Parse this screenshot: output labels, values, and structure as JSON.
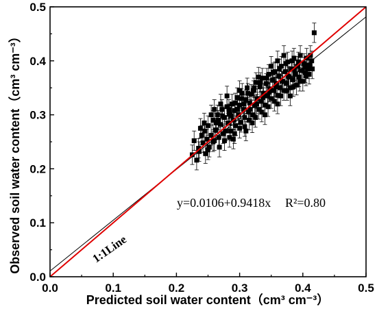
{
  "chart_data": {
    "type": "scatter",
    "xlabel": "Predicted soil water content（cm³ cm⁻³）",
    "ylabel": "Observed soil water content（cm³ cm⁻³）",
    "xlim": [
      0.0,
      0.5
    ],
    "ylim": [
      0.0,
      0.5
    ],
    "x_ticks": [
      "0.0",
      "0.1",
      "0.2",
      "0.3",
      "0.4",
      "0.5"
    ],
    "y_ticks": [
      "0.0",
      "0.1",
      "0.2",
      "0.3",
      "0.4",
      "0.5"
    ],
    "grid": false,
    "marker": "square",
    "error_bar": 0.018,
    "regression": {
      "intercept": 0.0106,
      "slope": 0.9418,
      "equation": "y=0.0106+0.9418x",
      "r2_label": "R²=0.80",
      "color": "#000000"
    },
    "reference_line": {
      "label": "1:1Line",
      "color": "#e00000"
    },
    "points": [
      [
        0.225,
        0.226
      ],
      [
        0.232,
        0.216
      ],
      [
        0.228,
        0.252
      ],
      [
        0.235,
        0.238
      ],
      [
        0.24,
        0.262
      ],
      [
        0.236,
        0.232
      ],
      [
        0.242,
        0.248
      ],
      [
        0.245,
        0.27
      ],
      [
        0.248,
        0.255
      ],
      [
        0.25,
        0.28
      ],
      [
        0.252,
        0.24
      ],
      [
        0.255,
        0.262
      ],
      [
        0.258,
        0.29
      ],
      [
        0.26,
        0.252
      ],
      [
        0.262,
        0.272
      ],
      [
        0.265,
        0.3
      ],
      [
        0.267,
        0.258
      ],
      [
        0.27,
        0.282
      ],
      [
        0.272,
        0.31
      ],
      [
        0.274,
        0.265
      ],
      [
        0.276,
        0.295
      ],
      [
        0.278,
        0.27
      ],
      [
        0.28,
        0.315
      ],
      [
        0.282,
        0.285
      ],
      [
        0.284,
        0.302
      ],
      [
        0.286,
        0.27
      ],
      [
        0.288,
        0.32
      ],
      [
        0.29,
        0.29
      ],
      [
        0.292,
        0.308
      ],
      [
        0.294,
        0.28
      ],
      [
        0.296,
        0.332
      ],
      [
        0.298,
        0.3
      ],
      [
        0.3,
        0.318
      ],
      [
        0.302,
        0.286
      ],
      [
        0.304,
        0.34
      ],
      [
        0.306,
        0.31
      ],
      [
        0.308,
        0.295
      ],
      [
        0.31,
        0.328
      ],
      [
        0.312,
        0.35
      ],
      [
        0.314,
        0.305
      ],
      [
        0.316,
        0.322
      ],
      [
        0.318,
        0.338
      ],
      [
        0.32,
        0.3
      ],
      [
        0.322,
        0.345
      ],
      [
        0.324,
        0.318
      ],
      [
        0.326,
        0.36
      ],
      [
        0.328,
        0.33
      ],
      [
        0.33,
        0.31
      ],
      [
        0.332,
        0.352
      ],
      [
        0.334,
        0.325
      ],
      [
        0.336,
        0.368
      ],
      [
        0.338,
        0.34
      ],
      [
        0.34,
        0.318
      ],
      [
        0.342,
        0.358
      ],
      [
        0.344,
        0.335
      ],
      [
        0.346,
        0.375
      ],
      [
        0.348,
        0.348
      ],
      [
        0.35,
        0.33
      ],
      [
        0.352,
        0.365
      ],
      [
        0.354,
        0.345
      ],
      [
        0.356,
        0.38
      ],
      [
        0.358,
        0.358
      ],
      [
        0.36,
        0.336
      ],
      [
        0.362,
        0.372
      ],
      [
        0.364,
        0.35
      ],
      [
        0.366,
        0.39
      ],
      [
        0.368,
        0.362
      ],
      [
        0.37,
        0.345
      ],
      [
        0.372,
        0.38
      ],
      [
        0.374,
        0.358
      ],
      [
        0.376,
        0.398
      ],
      [
        0.378,
        0.37
      ],
      [
        0.38,
        0.35
      ],
      [
        0.382,
        0.385
      ],
      [
        0.384,
        0.365
      ],
      [
        0.386,
        0.405
      ],
      [
        0.388,
        0.375
      ],
      [
        0.39,
        0.355
      ],
      [
        0.392,
        0.39
      ],
      [
        0.394,
        0.37
      ],
      [
        0.396,
        0.41
      ],
      [
        0.398,
        0.382
      ],
      [
        0.4,
        0.362
      ],
      [
        0.402,
        0.395
      ],
      [
        0.404,
        0.378
      ],
      [
        0.406,
        0.405
      ],
      [
        0.408,
        0.385
      ],
      [
        0.41,
        0.392
      ],
      [
        0.412,
        0.41
      ],
      [
        0.414,
        0.4
      ],
      [
        0.418,
        0.452
      ],
      [
        0.27,
        0.32
      ],
      [
        0.26,
        0.31
      ],
      [
        0.28,
        0.335
      ],
      [
        0.3,
        0.345
      ],
      [
        0.33,
        0.37
      ],
      [
        0.35,
        0.39
      ],
      [
        0.36,
        0.4
      ],
      [
        0.37,
        0.41
      ],
      [
        0.31,
        0.27
      ],
      [
        0.29,
        0.255
      ],
      [
        0.32,
        0.285
      ],
      [
        0.34,
        0.3
      ],
      [
        0.36,
        0.32
      ],
      [
        0.38,
        0.335
      ],
      [
        0.25,
        0.235
      ],
      [
        0.246,
        0.228
      ],
      [
        0.258,
        0.25
      ],
      [
        0.268,
        0.24
      ],
      [
        0.276,
        0.252
      ],
      [
        0.284,
        0.258
      ],
      [
        0.292,
        0.265
      ],
      [
        0.3,
        0.275
      ],
      [
        0.308,
        0.278
      ],
      [
        0.315,
        0.29
      ],
      [
        0.325,
        0.295
      ],
      [
        0.335,
        0.305
      ],
      [
        0.345,
        0.315
      ],
      [
        0.355,
        0.325
      ],
      [
        0.365,
        0.335
      ],
      [
        0.375,
        0.345
      ],
      [
        0.385,
        0.352
      ],
      [
        0.395,
        0.362
      ],
      [
        0.405,
        0.372
      ],
      [
        0.263,
        0.285
      ],
      [
        0.273,
        0.298
      ],
      [
        0.283,
        0.31
      ],
      [
        0.293,
        0.322
      ],
      [
        0.303,
        0.33
      ],
      [
        0.313,
        0.34
      ],
      [
        0.323,
        0.35
      ],
      [
        0.333,
        0.36
      ],
      [
        0.343,
        0.368
      ],
      [
        0.353,
        0.378
      ],
      [
        0.363,
        0.385
      ],
      [
        0.373,
        0.395
      ],
      [
        0.383,
        0.4
      ],
      [
        0.393,
        0.398
      ],
      [
        0.403,
        0.388
      ],
      [
        0.41,
        0.375
      ],
      [
        0.415,
        0.385
      ],
      [
        0.238,
        0.275
      ],
      [
        0.244,
        0.285
      ],
      [
        0.255,
        0.3
      ],
      [
        0.266,
        0.29
      ],
      [
        0.287,
        0.298
      ],
      [
        0.297,
        0.31
      ],
      [
        0.307,
        0.32
      ],
      [
        0.317,
        0.31
      ],
      [
        0.327,
        0.32
      ],
      [
        0.337,
        0.332
      ],
      [
        0.347,
        0.342
      ],
      [
        0.357,
        0.352
      ],
      [
        0.367,
        0.362
      ],
      [
        0.377,
        0.372
      ],
      [
        0.387,
        0.382
      ]
    ]
  }
}
